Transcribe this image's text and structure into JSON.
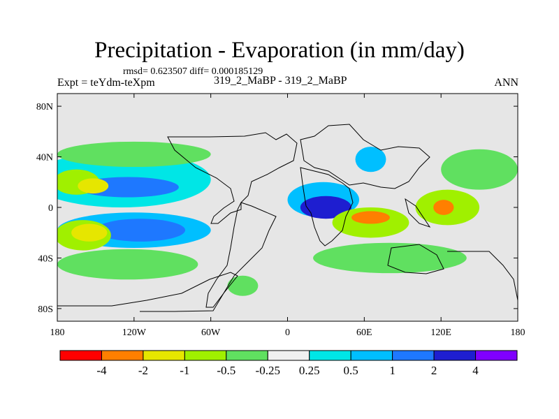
{
  "title": "Precipitation - Evaporation (in mm/day)",
  "stats_line": "rmsd= 0.623507 diff= 0.000185129",
  "expt_label": "Expt = teYdm-teXpm",
  "comparison_label": "319_2_MaBP - 319_2_MaBP",
  "season_label": "ANN",
  "colors": {
    "background": "#e6e6e6",
    "coastline": "#000000"
  },
  "chart_data": {
    "type": "heatmap",
    "title": "Precipitation - Evaporation (in mm/day)",
    "projection": "cylindrical-equidistant",
    "xlim": [
      -180,
      180
    ],
    "ylim": [
      -90,
      90
    ],
    "x_ticks": [
      {
        "value": -180,
        "label": "180"
      },
      {
        "value": -120,
        "label": "120W"
      },
      {
        "value": -60,
        "label": "60W"
      },
      {
        "value": 0,
        "label": "0"
      },
      {
        "value": 60,
        "label": "60E"
      },
      {
        "value": 120,
        "label": "120E"
      },
      {
        "value": 180,
        "label": "180"
      }
    ],
    "y_ticks": [
      {
        "value": 80,
        "label": "80N"
      },
      {
        "value": 40,
        "label": "40N"
      },
      {
        "value": 0,
        "label": "0"
      },
      {
        "value": -40,
        "label": "40S"
      },
      {
        "value": -80,
        "label": "80S"
      }
    ],
    "colorbar": {
      "colors": [
        "#ff0000",
        "#ff7f00",
        "#e6e600",
        "#a0f000",
        "#60e060",
        "#f0f0f0",
        "#00e6e6",
        "#00bfff",
        "#1e78ff",
        "#1e1ed0",
        "#8000ff"
      ],
      "labels": [
        "-4",
        "-2",
        "-1",
        "-0.5",
        "-0.25",
        "0.25",
        "0.5",
        "1",
        "2",
        "4"
      ]
    },
    "regions": [
      {
        "name": "n-pacific-wet-band",
        "level": "0.25 to 0.5",
        "color": "#00e6e6",
        "lon": -130,
        "lat": 22,
        "rx": 70,
        "ry": 22
      },
      {
        "name": "n-pacific-wet-core",
        "level": "1 to 2",
        "color": "#1e78ff",
        "lon": -125,
        "lat": 16,
        "rx": 40,
        "ry": 8
      },
      {
        "name": "n-pacific-green-band",
        "level": "-0.5 to -0.25",
        "color": "#60e060",
        "lon": -120,
        "lat": 42,
        "rx": 60,
        "ry": 10
      },
      {
        "name": "central-pacific-dry",
        "level": "-1 to -0.5",
        "color": "#a0f000",
        "lon": -165,
        "lat": 20,
        "rx": 18,
        "ry": 10
      },
      {
        "name": "central-pacific-dry-core",
        "level": "-2 to -1",
        "color": "#e6e600",
        "lon": -152,
        "lat": 17,
        "rx": 12,
        "ry": 6
      },
      {
        "name": "s-pacific-wet-band",
        "level": "0.5 to 1",
        "color": "#00bfff",
        "lon": -120,
        "lat": -18,
        "rx": 60,
        "ry": 14
      },
      {
        "name": "s-pacific-wet-core",
        "level": "1 to 2",
        "color": "#1e78ff",
        "lon": -115,
        "lat": -18,
        "rx": 35,
        "ry": 9
      },
      {
        "name": "s-pacific-dry-west",
        "level": "-1 to -0.5",
        "color": "#a0f000",
        "lon": -160,
        "lat": -22,
        "rx": 22,
        "ry": 12
      },
      {
        "name": "s-pacific-dry-west-core",
        "level": "-2 to -1",
        "color": "#e6e600",
        "lon": -155,
        "lat": -20,
        "rx": 14,
        "ry": 7
      },
      {
        "name": "s-pacific-green-band",
        "level": "-0.5 to -0.25",
        "color": "#60e060",
        "lon": -125,
        "lat": -45,
        "rx": 55,
        "ry": 12
      },
      {
        "name": "s-atlantic-green",
        "level": "-0.5 to -0.25",
        "color": "#60e060",
        "lon": -35,
        "lat": -62,
        "rx": 12,
        "ry": 8
      },
      {
        "name": "africa-wet-band",
        "level": "0.5 to 1",
        "color": "#00bfff",
        "lon": 28,
        "lat": 6,
        "rx": 28,
        "ry": 14
      },
      {
        "name": "africa-wet-core",
        "level": "2 to 4",
        "color": "#1e1ed0",
        "lon": 30,
        "lat": 0,
        "rx": 20,
        "ry": 9
      },
      {
        "name": "asia-wet",
        "level": "0.5 to 1",
        "color": "#00bfff",
        "lon": 65,
        "lat": 38,
        "rx": 12,
        "ry": 10
      },
      {
        "name": "indian-ocean-dry",
        "level": "-1 to -0.5",
        "color": "#a0f000",
        "lon": 65,
        "lat": -12,
        "rx": 30,
        "ry": 12
      },
      {
        "name": "indian-ocean-dry-core",
        "level": "-4 to -2",
        "color": "#ff7f00",
        "lon": 65,
        "lat": -8,
        "rx": 15,
        "ry": 5
      },
      {
        "name": "w-pacific-dry",
        "level": "-1 to -0.5",
        "color": "#a0f000",
        "lon": 125,
        "lat": 0,
        "rx": 25,
        "ry": 14
      },
      {
        "name": "w-pacific-dry-core",
        "level": "-4 to -2",
        "color": "#ff7f00",
        "lon": 122,
        "lat": 0,
        "rx": 8,
        "ry": 6
      },
      {
        "name": "s-indian-green",
        "level": "-0.5 to -0.25",
        "color": "#60e060",
        "lon": 80,
        "lat": -40,
        "rx": 60,
        "ry": 12
      },
      {
        "name": "n-pacific-east-green",
        "level": "-0.5 to -0.25",
        "color": "#60e060",
        "lon": 150,
        "lat": 30,
        "rx": 30,
        "ry": 16
      }
    ]
  }
}
